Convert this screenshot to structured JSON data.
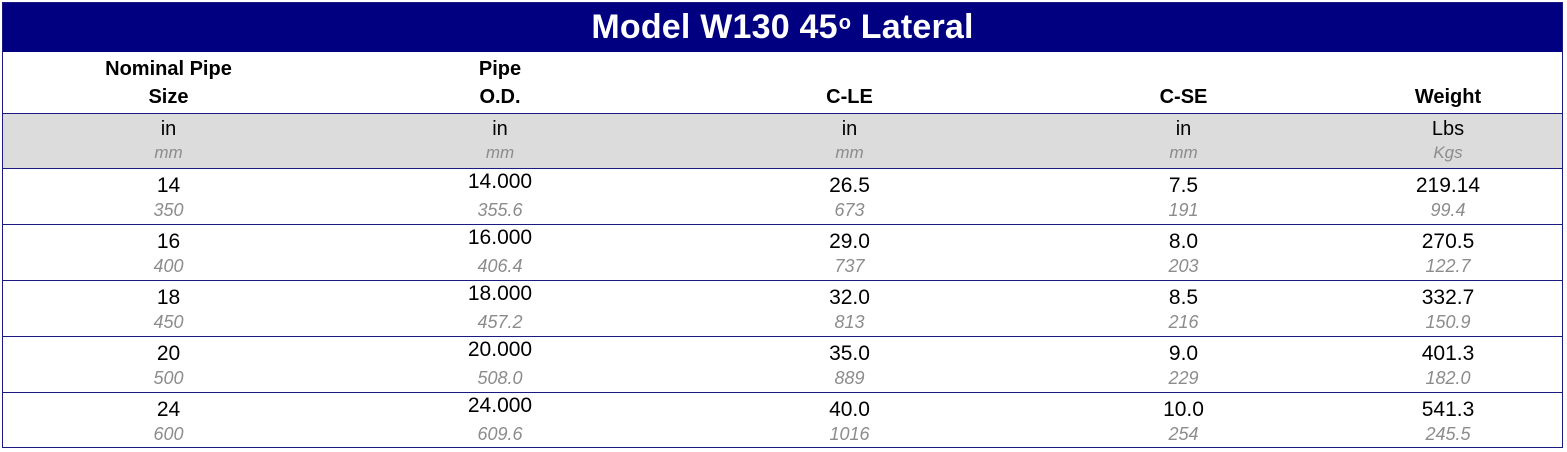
{
  "title": {
    "prefix": "Model W130 45",
    "superscript": "o",
    "suffix": " Lateral"
  },
  "colors": {
    "title_bg": "#000080",
    "title_text": "#ffffff",
    "unit_row_bg": "#dcdcdc",
    "border": "#1a1a80",
    "metric_text": "#8c8c8c"
  },
  "columns": [
    {
      "header_line1": "Nominal Pipe",
      "header_line2": "Size",
      "unit_imperial": "in",
      "unit_metric": "mm"
    },
    {
      "header_line1": "Pipe",
      "header_line2": "O.D.",
      "unit_imperial": "in",
      "unit_metric": "mm"
    },
    {
      "header_line1": "",
      "header_line2": "C-LE",
      "unit_imperial": "in",
      "unit_metric": "mm"
    },
    {
      "header_line1": "",
      "header_line2": "C-SE",
      "unit_imperial": "in",
      "unit_metric": "mm"
    },
    {
      "header_line1": "",
      "header_line2": "Weight",
      "unit_imperial": "Lbs",
      "unit_metric": "Kgs"
    }
  ],
  "rows": [
    {
      "size": {
        "imperial": "14",
        "metric": "350"
      },
      "od": {
        "imperial": "14.000",
        "metric": "355.6"
      },
      "c_le": {
        "imperial": "26.5",
        "metric": "673"
      },
      "c_se": {
        "imperial": "7.5",
        "metric": "191"
      },
      "weight": {
        "imperial": "219.14",
        "metric": "99.4"
      }
    },
    {
      "size": {
        "imperial": "16",
        "metric": "400"
      },
      "od": {
        "imperial": "16.000",
        "metric": "406.4"
      },
      "c_le": {
        "imperial": "29.0",
        "metric": "737"
      },
      "c_se": {
        "imperial": "8.0",
        "metric": "203"
      },
      "weight": {
        "imperial": "270.5",
        "metric": "122.7"
      }
    },
    {
      "size": {
        "imperial": "18",
        "metric": "450"
      },
      "od": {
        "imperial": "18.000",
        "metric": "457.2"
      },
      "c_le": {
        "imperial": "32.0",
        "metric": "813"
      },
      "c_se": {
        "imperial": "8.5",
        "metric": "216"
      },
      "weight": {
        "imperial": "332.7",
        "metric": "150.9"
      }
    },
    {
      "size": {
        "imperial": "20",
        "metric": "500"
      },
      "od": {
        "imperial": "20.000",
        "metric": "508.0"
      },
      "c_le": {
        "imperial": "35.0",
        "metric": "889"
      },
      "c_se": {
        "imperial": "9.0",
        "metric": "229"
      },
      "weight": {
        "imperial": "401.3",
        "metric": "182.0"
      }
    },
    {
      "size": {
        "imperial": "24",
        "metric": "600"
      },
      "od": {
        "imperial": "24.000",
        "metric": "609.6"
      },
      "c_le": {
        "imperial": "40.0",
        "metric": "1016"
      },
      "c_se": {
        "imperial": "10.0",
        "metric": "254"
      },
      "weight": {
        "imperial": "541.3",
        "metric": "245.5"
      }
    }
  ]
}
